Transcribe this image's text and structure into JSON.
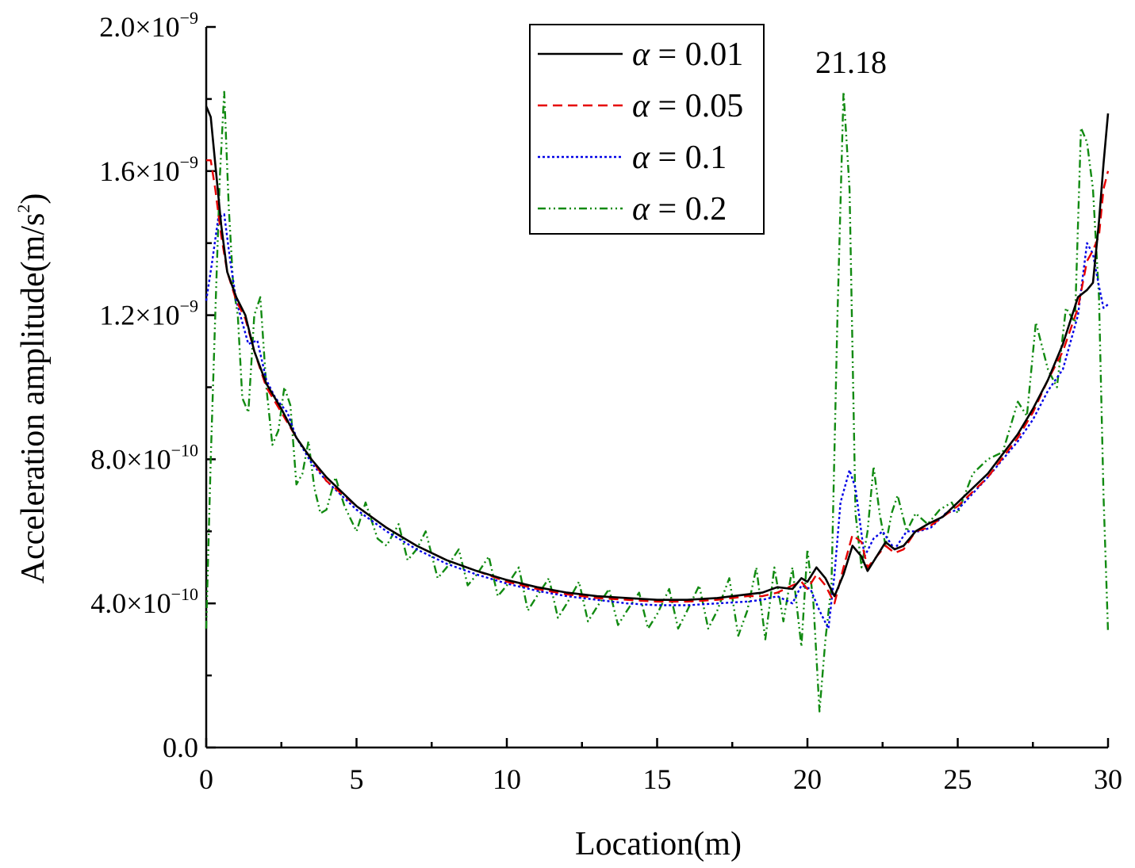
{
  "chart_data": {
    "type": "line",
    "title": "",
    "xlabel": "Location(m)",
    "ylabel_main": "Acceleration amplitude(m/s",
    "ylabel_sup": "2",
    "ylabel_close": ")",
    "xlim": [
      0,
      30
    ],
    "ylim": [
      0,
      2e-09
    ],
    "grid": false,
    "legend_position": "top-right",
    "x_ticks": [
      {
        "value": 0,
        "label": "0"
      },
      {
        "value": 5,
        "label": "5"
      },
      {
        "value": 10,
        "label": "10"
      },
      {
        "value": 15,
        "label": "15"
      },
      {
        "value": 20,
        "label": "20"
      },
      {
        "value": 25,
        "label": "25"
      },
      {
        "value": 30,
        "label": "30"
      }
    ],
    "x_minor_ticks": [
      2.5,
      7.5,
      12.5,
      17.5,
      22.5,
      27.5
    ],
    "y_ticks": [
      {
        "value": 0,
        "base": "0.0",
        "exp": ""
      },
      {
        "value": 4e-10,
        "base": "4.0×10",
        "exp": "−10"
      },
      {
        "value": 8e-10,
        "base": "8.0×10",
        "exp": "−10"
      },
      {
        "value": 1.2e-09,
        "base": "1.2×10",
        "exp": "−9"
      },
      {
        "value": 1.6e-09,
        "base": "1.6×10",
        "exp": "−9"
      },
      {
        "value": 2e-09,
        "base": "2.0×10",
        "exp": "−9"
      }
    ],
    "y_minor_ticks": [
      2e-10,
      6e-10,
      1e-09,
      1.4e-09,
      1.8e-09
    ],
    "annotations": [
      {
        "text": "21.18",
        "x": 21.18,
        "y": 1.92e-09
      }
    ],
    "series": [
      {
        "name": "α = 0.01",
        "symbol": "α",
        "value_text": "= 0.01",
        "color": "#000000",
        "dash": "",
        "x": [
          0,
          0.15,
          0.3,
          0.5,
          0.7,
          1.0,
          1.3,
          1.6,
          2.0,
          2.5,
          3.0,
          3.5,
          4.0,
          5.0,
          6.0,
          7.0,
          8.0,
          9.0,
          10.0,
          11.0,
          12.0,
          13.0,
          14.0,
          15.0,
          16.0,
          17.0,
          18.0,
          18.5,
          19.0,
          19.5,
          19.8,
          20.0,
          20.3,
          20.6,
          20.9,
          21.2,
          21.5,
          21.8,
          22.0,
          22.3,
          22.6,
          22.9,
          23.2,
          23.6,
          24.0,
          24.5,
          25.0,
          26.0,
          27.0,
          27.5,
          28.0,
          28.5,
          29.0,
          29.3,
          29.5,
          29.7,
          29.85,
          30.0
        ],
        "values": [
          1.78e-09,
          1.75e-09,
          1.62e-09,
          1.45e-09,
          1.32e-09,
          1.25e-09,
          1.2e-09,
          1.1e-09,
          1.01e-09,
          9.4e-10,
          8.6e-10,
          8e-10,
          7.5e-10,
          6.7e-10,
          6.1e-10,
          5.6e-10,
          5.2e-10,
          4.9e-10,
          4.65e-10,
          4.45e-10,
          4.3e-10,
          4.2e-10,
          4.15e-10,
          4.1e-10,
          4.1e-10,
          4.15e-10,
          4.25e-10,
          4.3e-10,
          4.45e-10,
          4.4e-10,
          4.7e-10,
          4.6e-10,
          5e-10,
          4.7e-10,
          4.2e-10,
          4.8e-10,
          5.6e-10,
          5.3e-10,
          4.9e-10,
          5.3e-10,
          5.7e-10,
          5.5e-10,
          5.6e-10,
          6e-10,
          6.2e-10,
          6.4e-10,
          6.8e-10,
          7.6e-10,
          8.7e-10,
          9.4e-10,
          1.02e-09,
          1.12e-09,
          1.25e-09,
          1.27e-09,
          1.29e-09,
          1.46e-09,
          1.62e-09,
          1.76e-09
        ]
      },
      {
        "name": "α = 0.05",
        "symbol": "α",
        "value_text": "= 0.05",
        "color": "#e60000",
        "dash": "12,7",
        "x": [
          0,
          0.15,
          0.3,
          0.5,
          0.7,
          1.0,
          1.3,
          1.6,
          2.0,
          2.5,
          3.0,
          3.5,
          4.0,
          5.0,
          6.0,
          7.0,
          8.0,
          9.0,
          10.0,
          11.0,
          12.0,
          13.0,
          14.0,
          15.0,
          16.0,
          17.0,
          18.0,
          18.5,
          19.0,
          19.5,
          19.8,
          20.0,
          20.3,
          20.6,
          20.9,
          21.2,
          21.5,
          21.8,
          22.0,
          22.3,
          22.6,
          22.9,
          23.2,
          23.6,
          24.0,
          24.5,
          25.0,
          26.0,
          27.0,
          27.5,
          28.0,
          28.5,
          29.0,
          29.3,
          29.5,
          29.7,
          29.85,
          30.0
        ],
        "values": [
          1.63e-09,
          1.63e-09,
          1.55e-09,
          1.42e-09,
          1.32e-09,
          1.24e-09,
          1.19e-09,
          1.1e-09,
          1e-09,
          9.3e-10,
          8.6e-10,
          8e-10,
          7.4e-10,
          6.7e-10,
          6.1e-10,
          5.6e-10,
          5.2e-10,
          4.9e-10,
          4.6e-10,
          4.4e-10,
          4.25e-10,
          4.15e-10,
          4.1e-10,
          4.05e-10,
          4.05e-10,
          4.1e-10,
          4.2e-10,
          4.2e-10,
          4.3e-10,
          4.5e-10,
          4.6e-10,
          4.4e-10,
          4.8e-10,
          4.5e-10,
          4e-10,
          5e-10,
          5.9e-10,
          5.7e-10,
          5e-10,
          5.3e-10,
          5.6e-10,
          5.4e-10,
          5.5e-10,
          6e-10,
          6.1e-10,
          6.4e-10,
          6.7e-10,
          7.5e-10,
          8.6e-10,
          9.3e-10,
          1.02e-09,
          1.1e-09,
          1.22e-09,
          1.35e-09,
          1.38e-09,
          1.42e-09,
          1.55e-09,
          1.6e-09
        ]
      },
      {
        "name": "α = 0.1",
        "symbol": "α",
        "value_text": "= 0.1",
        "color": "#0000e6",
        "dash": "3,3",
        "x": [
          0,
          0.2,
          0.4,
          0.6,
          0.8,
          1.0,
          1.2,
          1.4,
          1.7,
          2.0,
          2.3,
          2.7,
          3.0,
          3.5,
          4.0,
          4.5,
          5.0,
          6.0,
          7.0,
          8.0,
          9.0,
          10.0,
          11.0,
          12.0,
          13.0,
          14.0,
          15.0,
          16.0,
          17.0,
          18.0,
          18.5,
          19.0,
          19.5,
          19.8,
          20.1,
          20.4,
          20.7,
          20.9,
          21.1,
          21.4,
          21.6,
          21.9,
          22.2,
          22.5,
          22.9,
          23.3,
          23.7,
          24.1,
          24.6,
          25.0,
          26.0,
          27.0,
          27.5,
          28.0,
          28.5,
          29.0,
          29.3,
          29.5,
          29.7,
          29.85,
          30.0
        ],
        "values": [
          1.24e-09,
          1.35e-09,
          1.47e-09,
          1.48e-09,
          1.35e-09,
          1.24e-09,
          1.18e-09,
          1.12e-09,
          1.13e-09,
          1.02e-09,
          9.7e-10,
          9.3e-10,
          8.6e-10,
          7.9e-10,
          7.4e-10,
          7e-10,
          6.6e-10,
          6e-10,
          5.5e-10,
          5.1e-10,
          4.8e-10,
          4.55e-10,
          4.35e-10,
          4.2e-10,
          4.1e-10,
          4e-10,
          3.95e-10,
          3.95e-10,
          4e-10,
          4.05e-10,
          4.1e-10,
          4.2e-10,
          4e-10,
          4.5e-10,
          4.4e-10,
          3.8e-10,
          3.3e-10,
          4.8e-10,
          6.8e-10,
          7.7e-10,
          7.2e-10,
          5.3e-10,
          5.8e-10,
          6e-10,
          5.5e-10,
          6e-10,
          6e-10,
          6.1e-10,
          6.5e-10,
          6.6e-10,
          7.5e-10,
          8.5e-10,
          9.1e-10,
          9.9e-10,
          1.05e-09,
          1.2e-09,
          1.4e-09,
          1.37e-09,
          1.28e-09,
          1.22e-09,
          1.23e-09
        ]
      },
      {
        "name": "α = 0.2",
        "symbol": "α",
        "value_text": "= 0.2",
        "color": "#118a11",
        "dash": "10,4,2,4,2,4",
        "x": [
          0,
          0.15,
          0.3,
          0.45,
          0.6,
          0.75,
          0.9,
          1.05,
          1.2,
          1.4,
          1.6,
          1.8,
          2.0,
          2.2,
          2.4,
          2.6,
          2.8,
          3.0,
          3.2,
          3.4,
          3.6,
          3.8,
          4.0,
          4.3,
          4.6,
          5.0,
          5.3,
          5.7,
          6.0,
          6.4,
          6.7,
          7.0,
          7.3,
          7.7,
          8.0,
          8.4,
          8.7,
          9.0,
          9.4,
          9.7,
          10.0,
          10.4,
          10.7,
          11.0,
          11.4,
          11.7,
          12.0,
          12.4,
          12.7,
          13.0,
          13.4,
          13.7,
          14.0,
          14.4,
          14.7,
          15.0,
          15.4,
          15.7,
          16.0,
          16.4,
          16.7,
          17.0,
          17.4,
          17.7,
          18.0,
          18.3,
          18.6,
          18.9,
          19.2,
          19.5,
          19.8,
          20.0,
          20.2,
          20.4,
          20.6,
          20.8,
          21.0,
          21.2,
          21.4,
          21.6,
          21.8,
          22.0,
          22.2,
          22.4,
          22.6,
          22.8,
          23.0,
          23.3,
          23.6,
          24.0,
          24.4,
          24.8,
          25.0,
          25.5,
          26.0,
          26.5,
          27.0,
          27.3,
          27.6,
          28.0,
          28.3,
          28.6,
          28.9,
          29.1,
          29.3,
          29.5,
          29.7,
          29.85,
          30.0
        ],
        "values": [
          3.3e-10,
          8e-10,
          1.2e-09,
          1.58e-09,
          1.82e-09,
          1.5e-09,
          1.28e-09,
          1.2e-09,
          9.7e-10,
          9.3e-10,
          1.2e-09,
          1.25e-09,
          1e-09,
          8.4e-10,
          8.8e-10,
          1e-09,
          9.5e-10,
          7.3e-10,
          7.6e-10,
          8.5e-10,
          7.2e-10,
          6.5e-10,
          6.6e-10,
          7.5e-10,
          6.7e-10,
          6e-10,
          6.8e-10,
          5.8e-10,
          5.6e-10,
          6.2e-10,
          5.2e-10,
          5.5e-10,
          6e-10,
          4.7e-10,
          5e-10,
          5.5e-10,
          4.5e-10,
          4.8e-10,
          5.3e-10,
          4.2e-10,
          4.5e-10,
          5e-10,
          3.8e-10,
          4.2e-10,
          4.7e-10,
          3.6e-10,
          4e-10,
          4.6e-10,
          3.5e-10,
          3.9e-10,
          4.4e-10,
          3.4e-10,
          3.8e-10,
          4.3e-10,
          3.3e-10,
          3.7e-10,
          4.4e-10,
          3.3e-10,
          3.8e-10,
          4.5e-10,
          3.3e-10,
          3.8e-10,
          4.7e-10,
          3.1e-10,
          3.8e-10,
          5e-10,
          3e-10,
          5e-10,
          3.5e-10,
          5e-10,
          2.8e-10,
          5.5e-10,
          4e-10,
          1e-10,
          3e-10,
          4.5e-10,
          1.2e-09,
          1.82e-09,
          1.55e-09,
          6.5e-10,
          5e-10,
          6e-10,
          7.8e-10,
          6.5e-10,
          5.6e-10,
          6.5e-10,
          7e-10,
          6e-10,
          6.5e-10,
          6.2e-10,
          6.6e-10,
          6.8e-10,
          6.5e-10,
          7.6e-10,
          8e-10,
          8.2e-10,
          9.6e-10,
          9.2e-10,
          1.18e-09,
          1.05e-09,
          1e-09,
          1.22e-09,
          1.18e-09,
          1.72e-09,
          1.68e-09,
          1.55e-09,
          1.25e-09,
          7e-10,
          3.2e-10
        ]
      }
    ]
  }
}
